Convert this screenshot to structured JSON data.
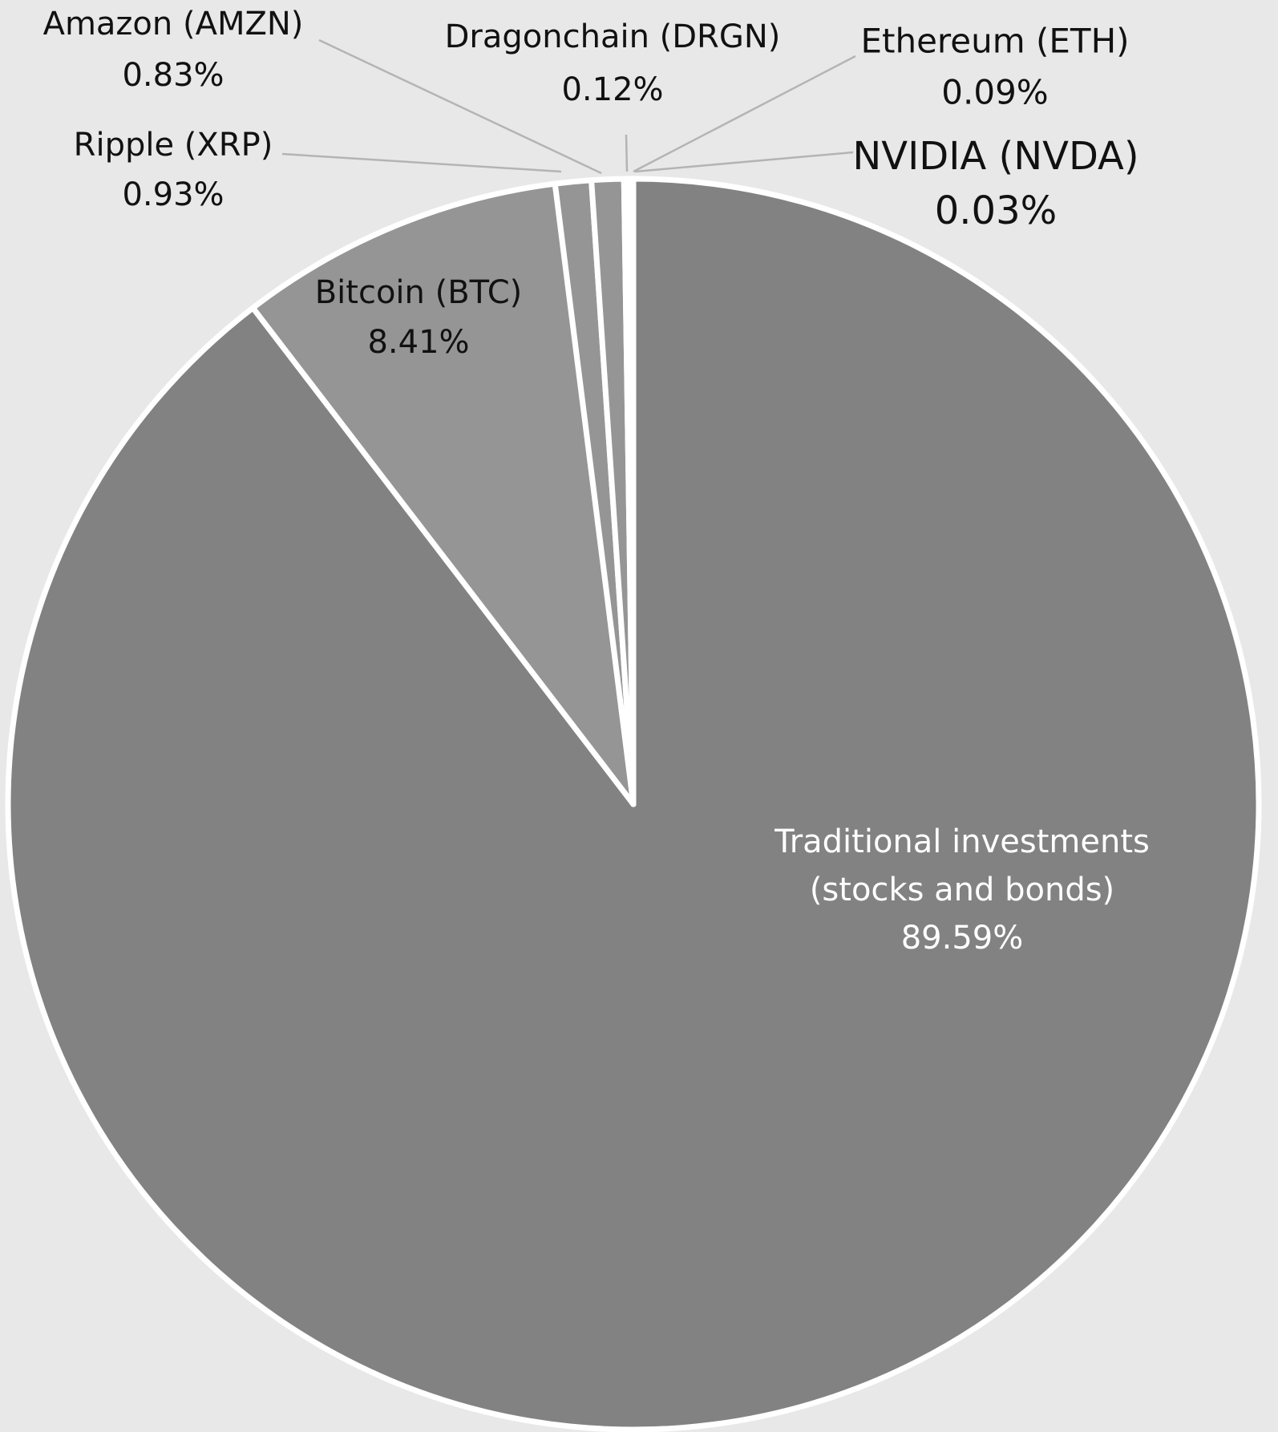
{
  "chart_data": {
    "type": "pie",
    "title": "",
    "start_angle": "12 o'clock",
    "direction": "clockwise",
    "legend": "none (data labels with leader lines)",
    "slices": [
      {
        "label": "Traditional investments (stocks and bonds)",
        "label_lines": [
          "Traditional investments",
          "(stocks and bonds)"
        ],
        "value": 89.59,
        "value_label": "89.59%",
        "color": "#828282"
      },
      {
        "label": "Bitcoin (BTC)",
        "label_lines": [
          "Bitcoin (BTC)"
        ],
        "value": 8.41,
        "value_label": "8.41%",
        "color": "#959595"
      },
      {
        "label": "Ripple (XRP)",
        "label_lines": [
          "Ripple (XRP)"
        ],
        "value": 0.93,
        "value_label": "0.93%",
        "color": "#959595"
      },
      {
        "label": "Amazon (AMZN)",
        "label_lines": [
          "Amazon (AMZN)"
        ],
        "value": 0.83,
        "value_label": "0.83%",
        "color": "#959595"
      },
      {
        "label": "Dragonchain (DRGN)",
        "label_lines": [
          "Dragonchain (DRGN)"
        ],
        "value": 0.12,
        "value_label": "0.12%",
        "color": "#959595"
      },
      {
        "label": "Ethereum (ETH)",
        "label_lines": [
          "Ethereum (ETH)"
        ],
        "value": 0.09,
        "value_label": "0.09%",
        "color": "#959595"
      },
      {
        "label": "NVIDIA (NVDA)",
        "label_lines": [
          "NVIDIA (NVDA)"
        ],
        "value": 0.03,
        "value_label": "0.03%",
        "color": "#959595"
      }
    ],
    "colors": {
      "background": "#e8e8e8",
      "slice_border": "#ffffff",
      "leader_line": "#b4b4b4",
      "label_text_dark": "#111111",
      "label_text_light": "#ffffff"
    }
  }
}
